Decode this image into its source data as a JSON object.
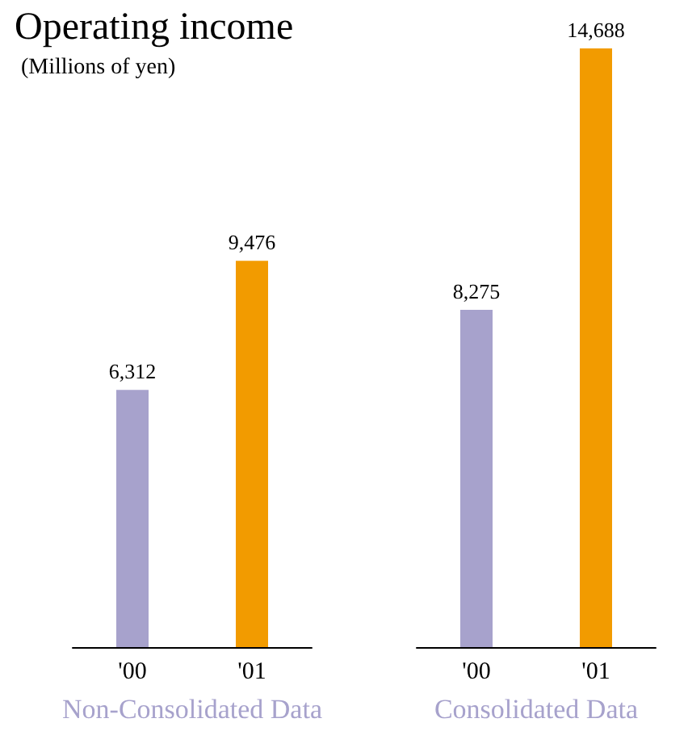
{
  "chart_data": [
    {
      "type": "bar",
      "title": "Operating income",
      "subtitle": "(Millions of yen)",
      "xlabel": "Non-Consolidated Data",
      "categories": [
        "'00",
        "'01"
      ],
      "values": [
        6312,
        9476
      ],
      "value_labels": [
        "6,312",
        "9,476"
      ],
      "colors": [
        "#a7a2cc",
        "#f29b00"
      ],
      "tick_labels": "x",
      "grid": false
    },
    {
      "type": "bar",
      "xlabel": "Consolidated Data",
      "categories": [
        "'00",
        "'01"
      ],
      "values": [
        8275,
        14688
      ],
      "value_labels": [
        "8,275",
        "14,688"
      ],
      "colors": [
        "#a7a2cc",
        "#f29b00"
      ],
      "tick_labels": "x",
      "grid": false
    }
  ]
}
